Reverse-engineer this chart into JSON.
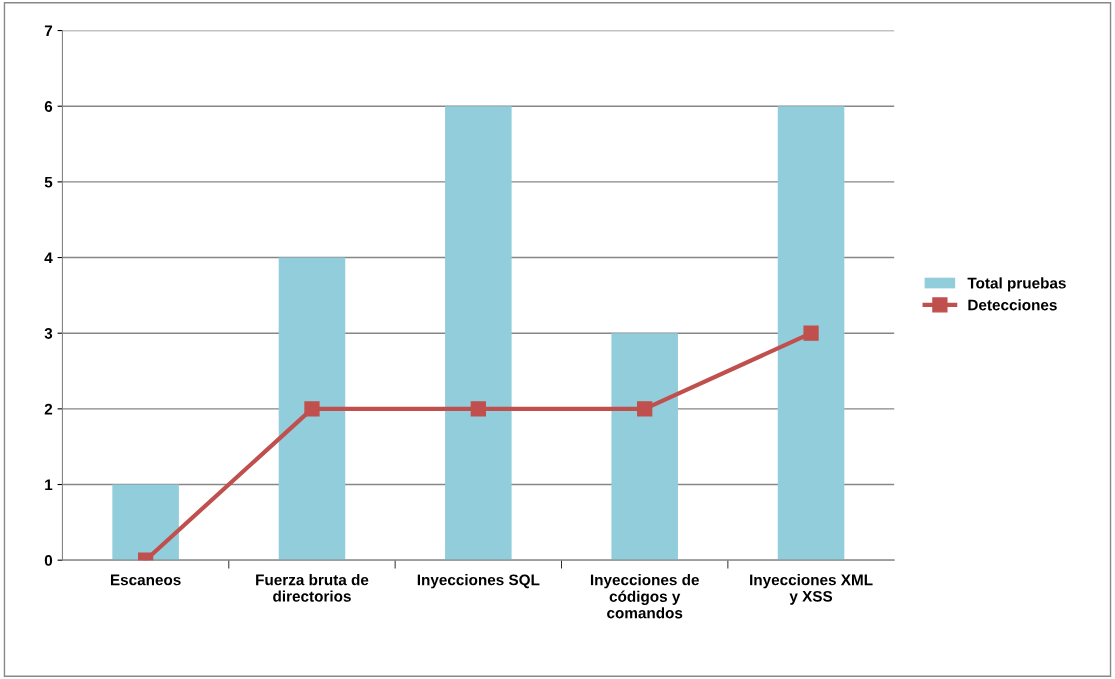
{
  "chart_data": {
    "type": "bar",
    "categories": [
      "Escaneos",
      "Fuerza bruta de directorios",
      "Inyecciones SQL",
      "Inyecciones de códigos y comandos",
      "Inyecciones XML y XSS"
    ],
    "series": [
      {
        "name": "Total pruebas",
        "color": "#92cddc",
        "values": [
          1,
          4,
          6,
          3,
          6
        ]
      },
      {
        "name": "Detecciones",
        "type": "line",
        "color": "#c0504d",
        "values": [
          0,
          2,
          2,
          2,
          3
        ],
        "marker": "square"
      }
    ],
    "ylim": [
      0,
      7
    ],
    "yticks": [
      0,
      1,
      2,
      3,
      4,
      5,
      6,
      7
    ],
    "grid": "y",
    "legend": "right"
  }
}
